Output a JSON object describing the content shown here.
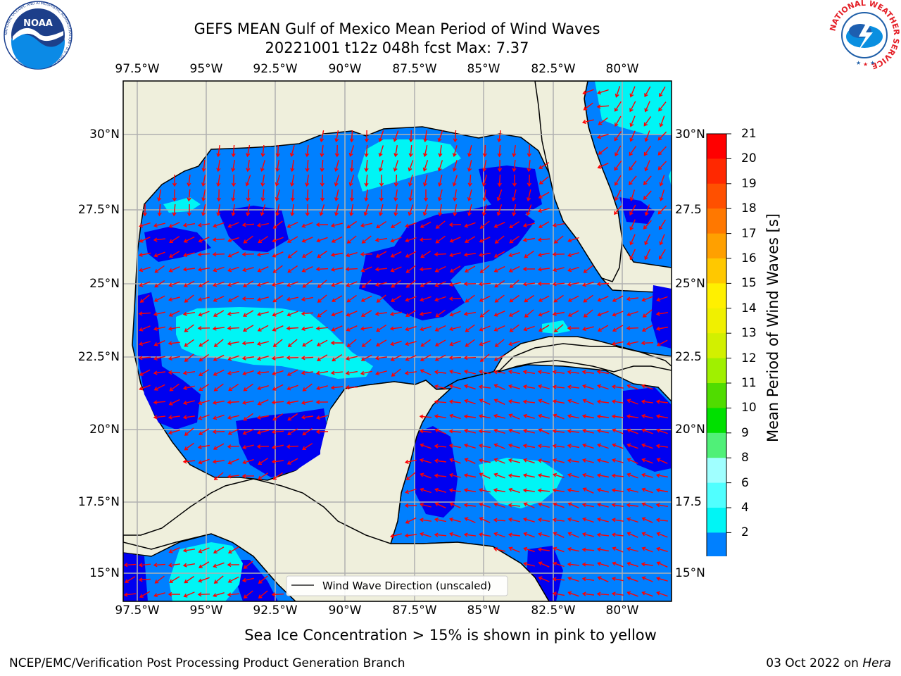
{
  "header": {
    "title_line1": "GEFS MEAN Gulf of Mexico Mean Period of Wind Waves",
    "title_line2": "20221001 t12z 048h fcst   Max: 7.37"
  },
  "logos": {
    "left_text": "NOAA",
    "left_ring_text": "NATIONAL OCEANIC AND ATMOSPHERIC ADMINISTRATION · U.S. DEPARTMENT OF COMMERCE",
    "right_ring_text": "NATIONAL WEATHER SERVICE"
  },
  "map": {
    "lon_ticks": [
      "97.5°W",
      "95°W",
      "92.5°W",
      "90°W",
      "87.5°W",
      "85°W",
      "82.5°W",
      "80°W"
    ],
    "lat_ticks_left": [
      "30°N",
      "27.5°N",
      "25°N",
      "22.5°N",
      "20°N",
      "17.5°N",
      "15°N"
    ],
    "lat_ticks_right": [
      "30°N",
      "27.5",
      "25°N",
      "22.5",
      "20°N",
      "17.5",
      "15°N"
    ],
    "legend_label": "Wind Wave Direction (unscaled)",
    "colors": {
      "land": "#efefdc",
      "water_low": "#0000f0",
      "water_2_4": "#0080ff",
      "water_4_6": "#00f5f5",
      "arrow": "#ff0000",
      "grid": "#b0b0b0"
    }
  },
  "colorbar": {
    "label": "Mean Period of Wind Waves [s]",
    "ticks": [
      "21",
      "20",
      "19",
      "18",
      "17",
      "16",
      "15",
      "14",
      "13",
      "12",
      "11",
      "10",
      "9",
      "8",
      "6",
      "4",
      "2"
    ],
    "colors": [
      "#ff0000",
      "#ff2800",
      "#ff5000",
      "#ff7800",
      "#ffa000",
      "#ffc800",
      "#fff000",
      "#f0f000",
      "#d2f000",
      "#a0f000",
      "#50dc00",
      "#00e000",
      "#50f078",
      "#a0ffff",
      "#50ffff",
      "#00f5f5",
      "#0080ff"
    ],
    "extend_color": "#0000f0"
  },
  "note": "Sea Ice Concentration > 15% is shown in pink to yellow",
  "footer": {
    "left": "NCEP/EMC/Verification Post Processing Product Generation Branch",
    "right_prefix": "03 Oct 2022 on",
    "right_host": "Hera"
  }
}
